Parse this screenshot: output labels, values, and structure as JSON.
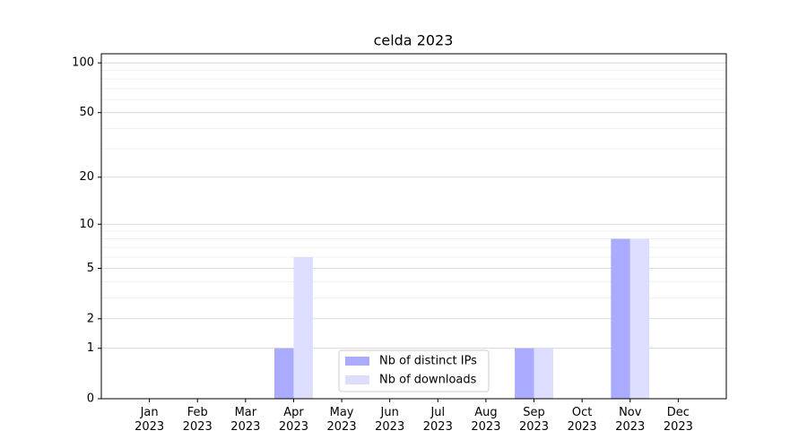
{
  "chart_data": {
    "type": "bar",
    "title": "celda 2023",
    "categories": [
      "Jan\n2023",
      "Feb\n2023",
      "Mar\n2023",
      "Apr\n2023",
      "May\n2023",
      "Jun\n2023",
      "Jul\n2023",
      "Aug\n2023",
      "Sep\n2023",
      "Oct\n2023",
      "Nov\n2023",
      "Dec\n2023"
    ],
    "series": [
      {
        "name": "Nb of distinct IPs",
        "color": "#aaaaff",
        "values": [
          0,
          0,
          0,
          1,
          0,
          0,
          0,
          0,
          1,
          0,
          8,
          0
        ]
      },
      {
        "name": "Nb of downloads",
        "color": "#ddddff",
        "values": [
          0,
          0,
          0,
          6,
          0,
          0,
          0,
          0,
          1,
          0,
          8,
          0
        ]
      }
    ],
    "yscale": "log1p",
    "ylim": [
      0,
      113.5
    ],
    "yticks": [
      0,
      1,
      2,
      5,
      10,
      20,
      50,
      100
    ],
    "minor_yticks": [
      3,
      4,
      6,
      7,
      8,
      9,
      30,
      40,
      60,
      70,
      80,
      90
    ],
    "grid": true,
    "legend": "lower center"
  }
}
